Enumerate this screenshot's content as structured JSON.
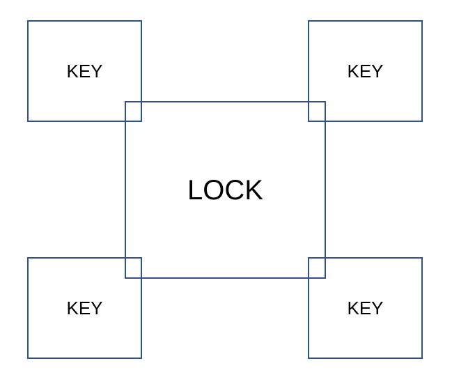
{
  "diagram": {
    "lock": {
      "label": "LOCK"
    },
    "keys": [
      {
        "label": "KEY"
      },
      {
        "label": "KEY"
      },
      {
        "label": "KEY"
      },
      {
        "label": "KEY"
      }
    ],
    "colors": {
      "border": "#2f528f",
      "text": "#000000",
      "background": "#ffffff"
    }
  }
}
